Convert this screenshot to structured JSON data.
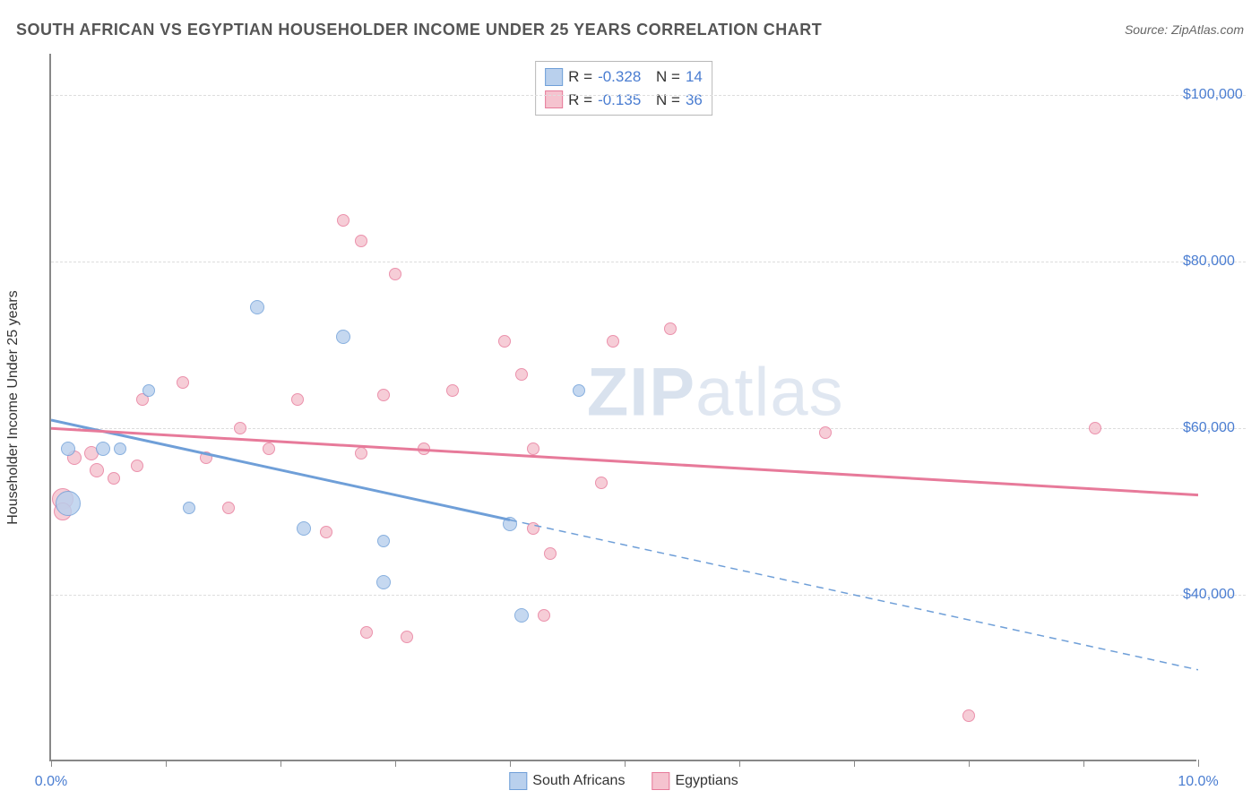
{
  "title": "SOUTH AFRICAN VS EGYPTIAN HOUSEHOLDER INCOME UNDER 25 YEARS CORRELATION CHART",
  "source": "Source: ZipAtlas.com",
  "watermark_l": "ZIP",
  "watermark_r": "atlas",
  "y_axis_label": "Householder Income Under 25 years",
  "chart": {
    "type": "scatter-correlation",
    "xlim": [
      0,
      10
    ],
    "ylim": [
      20000,
      105000
    ],
    "x_tick_pos": [
      0,
      1,
      2,
      3,
      4,
      5,
      6,
      7,
      8,
      9,
      10
    ],
    "x_tick_labels_shown": {
      "0": "0.0%",
      "10": "10.0%"
    },
    "y_gridlines": [
      40000,
      60000,
      80000,
      100000
    ],
    "y_tick_labels": {
      "40000": "$40,000",
      "60000": "$60,000",
      "80000": "$80,000",
      "100000": "$100,000"
    },
    "background_color": "#ffffff",
    "grid_color": "#dddddd",
    "axis_color": "#888888",
    "label_color": "#4a7dd1",
    "series": [
      {
        "name": "South Africans",
        "label": "South Africans",
        "fill": "#b9d0ed",
        "stroke": "#6f9fd8",
        "R": "-0.328",
        "N": "14",
        "trend": {
          "y_at_x0": 61000,
          "y_at_x10": 31000,
          "solid_until_x": 4.0
        },
        "points": [
          {
            "x": 0.15,
            "y": 51000,
            "r": 14
          },
          {
            "x": 0.15,
            "y": 57500,
            "r": 8
          },
          {
            "x": 0.45,
            "y": 57500,
            "r": 8
          },
          {
            "x": 0.6,
            "y": 57500,
            "r": 7
          },
          {
            "x": 0.85,
            "y": 64500,
            "r": 7
          },
          {
            "x": 1.8,
            "y": 74500,
            "r": 8
          },
          {
            "x": 1.2,
            "y": 50500,
            "r": 7
          },
          {
            "x": 2.2,
            "y": 48000,
            "r": 8
          },
          {
            "x": 2.55,
            "y": 71000,
            "r": 8
          },
          {
            "x": 2.9,
            "y": 41500,
            "r": 8
          },
          {
            "x": 2.9,
            "y": 46500,
            "r": 7
          },
          {
            "x": 4.0,
            "y": 48500,
            "r": 8
          },
          {
            "x": 4.1,
            "y": 37500,
            "r": 8
          },
          {
            "x": 4.6,
            "y": 64500,
            "r": 7
          }
        ]
      },
      {
        "name": "Egyptians",
        "label": "Egyptians",
        "fill": "#f5c3cf",
        "stroke": "#e77a9a",
        "R": "-0.135",
        "N": "36",
        "trend": {
          "y_at_x0": 60000,
          "y_at_x10": 52000,
          "solid_until_x": 10.0
        },
        "points": [
          {
            "x": 0.1,
            "y": 51500,
            "r": 12
          },
          {
            "x": 0.1,
            "y": 50000,
            "r": 10
          },
          {
            "x": 0.2,
            "y": 56500,
            "r": 8
          },
          {
            "x": 0.35,
            "y": 57000,
            "r": 8
          },
          {
            "x": 0.4,
            "y": 55000,
            "r": 8
          },
          {
            "x": 0.55,
            "y": 54000,
            "r": 7
          },
          {
            "x": 0.75,
            "y": 55500,
            "r": 7
          },
          {
            "x": 0.8,
            "y": 63500,
            "r": 7
          },
          {
            "x": 1.15,
            "y": 65500,
            "r": 7
          },
          {
            "x": 1.35,
            "y": 56500,
            "r": 7
          },
          {
            "x": 1.55,
            "y": 50500,
            "r": 7
          },
          {
            "x": 1.65,
            "y": 60000,
            "r": 7
          },
          {
            "x": 1.9,
            "y": 57500,
            "r": 7
          },
          {
            "x": 2.15,
            "y": 63500,
            "r": 7
          },
          {
            "x": 2.4,
            "y": 47500,
            "r": 7
          },
          {
            "x": 2.55,
            "y": 85000,
            "r": 7
          },
          {
            "x": 2.7,
            "y": 82500,
            "r": 7
          },
          {
            "x": 2.7,
            "y": 57000,
            "r": 7
          },
          {
            "x": 2.75,
            "y": 35500,
            "r": 7
          },
          {
            "x": 2.9,
            "y": 64000,
            "r": 7
          },
          {
            "x": 3.0,
            "y": 78500,
            "r": 7
          },
          {
            "x": 3.1,
            "y": 35000,
            "r": 7
          },
          {
            "x": 3.25,
            "y": 57500,
            "r": 7
          },
          {
            "x": 3.5,
            "y": 64500,
            "r": 7
          },
          {
            "x": 3.95,
            "y": 70500,
            "r": 7
          },
          {
            "x": 4.1,
            "y": 66500,
            "r": 7
          },
          {
            "x": 4.2,
            "y": 57500,
            "r": 7
          },
          {
            "x": 4.2,
            "y": 48000,
            "r": 7
          },
          {
            "x": 4.3,
            "y": 37500,
            "r": 7
          },
          {
            "x": 4.35,
            "y": 45000,
            "r": 7
          },
          {
            "x": 4.8,
            "y": 53500,
            "r": 7
          },
          {
            "x": 4.9,
            "y": 70500,
            "r": 7
          },
          {
            "x": 6.75,
            "y": 59500,
            "r": 7
          },
          {
            "x": 8.0,
            "y": 25500,
            "r": 7
          },
          {
            "x": 9.1,
            "y": 60000,
            "r": 7
          },
          {
            "x": 5.4,
            "y": 72000,
            "r": 7
          }
        ]
      }
    ],
    "correlation_legend": {
      "R_prefix": "R =",
      "N_prefix": "N ="
    },
    "series_legend_labels": [
      "South Africans",
      "Egyptians"
    ]
  }
}
